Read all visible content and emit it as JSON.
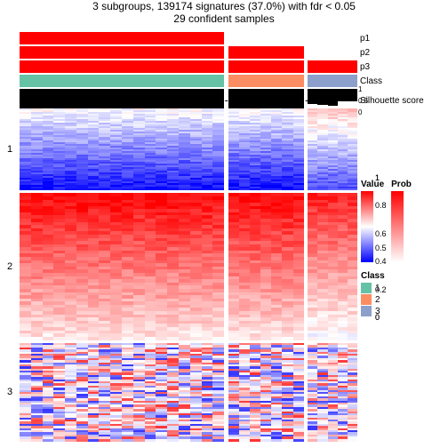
{
  "title_line1": "3 subgroups, 139174 signatures (37.0%) with fdr < 0.05",
  "title_line2": "29 confident samples",
  "anno_labels": {
    "p1": "p1",
    "p2": "p2",
    "p3": "p3",
    "class": "Class",
    "sil": "Silhouette\nscore"
  },
  "row_labels": {
    "g1": "1",
    "g2": "2",
    "g3": "3"
  },
  "sil_ticks": {
    "t1": "1",
    "t05": "0.5",
    "t0": "0"
  },
  "column_groups": [
    {
      "width_pct": 62,
      "class_color": "#66c2a5",
      "p1": "#ff0000",
      "p2": "#ff0000",
      "p3": "#ff0000",
      "sil_h": 0.96
    },
    {
      "width_pct": 23,
      "class_color": "#fc8d62",
      "p1": "#ffffff",
      "p2": "#ff0000",
      "p3": "#ff0000",
      "sil_h": 0.9
    },
    {
      "width_pct": 15,
      "class_color": "#8da0cb",
      "p1": "#ffffff",
      "p2": "#ffffff",
      "p3": "#ff0000",
      "sil_h": 0.7
    }
  ],
  "col_gap_pct": 1.2,
  "anno_row_heights": {
    "p": 14,
    "class": 14,
    "sil": 26,
    "gap": 2
  },
  "row_groups": [
    {
      "label_key": "g1",
      "height_pct": 25,
      "base": "#0000ff",
      "noise": 0.35,
      "row_gradient": [
        0.0,
        0.95
      ]
    },
    {
      "label_key": "g2",
      "height_pct": 45,
      "base": "#ff0000",
      "noise": 0.28,
      "row_gradient": [
        0.98,
        0.1
      ]
    },
    {
      "label_key": "g3",
      "height_pct": 30,
      "base": "mixed",
      "noise": 0.5,
      "row_gradient": [
        0.25,
        0.55
      ]
    }
  ],
  "row_gap_pct": 1.0,
  "n_samples_per_group": [
    18,
    7,
    5
  ],
  "lines_per_rowgroup": 46,
  "legend": {
    "value_title": "Value",
    "prob_title": "Prob",
    "class_title": "Class",
    "value_ticks": [
      "1",
      "0.8",
      "0.6",
      "0.4",
      "0.2",
      "0"
    ],
    "value_colors": [
      "#ff0000",
      "#ffffff",
      "#0000ff"
    ],
    "prob_ticks": [
      "1",
      "0.5",
      "0"
    ],
    "prob_colors": [
      "#ff0000",
      "#ffffff"
    ],
    "classes": [
      {
        "label": "1",
        "color": "#66c2a5"
      },
      {
        "label": "2",
        "color": "#fc8d62"
      },
      {
        "label": "3",
        "color": "#8da0cb"
      }
    ]
  },
  "colors": {
    "red": "#ff0000",
    "white": "#ffffff",
    "blue": "#0000ff",
    "black": "#000000"
  }
}
